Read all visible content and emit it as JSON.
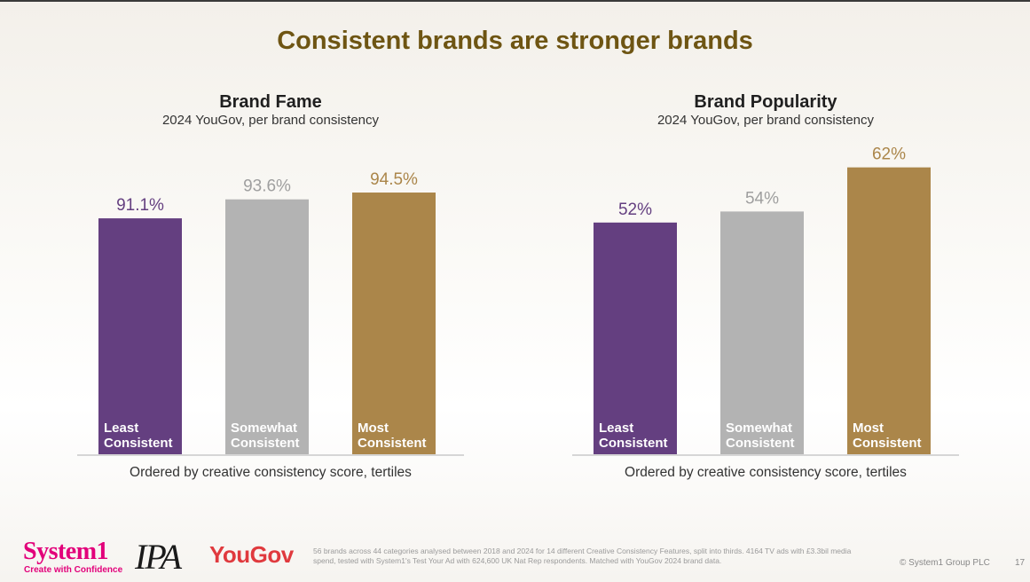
{
  "slide": {
    "title": "Consistent brands are stronger brands",
    "page_number": "17"
  },
  "colors": {
    "title": "#6e5513",
    "least": "#643f80",
    "somewhat": "#b3b3b3",
    "most": "#ab864a"
  },
  "chart_data": [
    {
      "type": "bar",
      "title": "Brand Fame",
      "subtitle": "2024 YouGov, per brand consistency",
      "caption": "Ordered by creative consistency score, tertiles",
      "categories": [
        "Least Consistent",
        "Somewhat Consistent",
        "Most Consistent"
      ],
      "category_lines": [
        [
          "Least",
          "Consistent"
        ],
        [
          "Somewhat",
          "Consistent"
        ],
        [
          "Most",
          "Consistent"
        ]
      ],
      "values": [
        91.1,
        93.6,
        94.5
      ],
      "data_labels": [
        "91.1%",
        "93.6%",
        "94.5%"
      ],
      "ylim": [
        60,
        100
      ],
      "grid": false,
      "legend": "none"
    },
    {
      "type": "bar",
      "title": "Brand Popularity",
      "subtitle": "2024 YouGov, per brand consistency",
      "caption": "Ordered by creative consistency score, tertiles",
      "categories": [
        "Least Consistent",
        "Somewhat Consistent",
        "Most Consistent"
      ],
      "category_lines": [
        [
          "Least",
          "Consistent"
        ],
        [
          "Somewhat",
          "Consistent"
        ],
        [
          "Most",
          "Consistent"
        ]
      ],
      "values": [
        52,
        54,
        62
      ],
      "data_labels": [
        "52%",
        "54%",
        "62%"
      ],
      "ylim": [
        10,
        65
      ],
      "grid": false,
      "legend": "none"
    }
  ],
  "footer": {
    "system1_logo": "System1",
    "system1_tagline": "Create with Confidence",
    "ipa_logo": "IPA",
    "yougov_logo": "YouGov",
    "footnote": "56 brands across 44 categories analysed between 2018 and 2024 for 14 different Creative Consistency Features, split into thirds. 4164 TV ads with £3.3bil media spend, tested with System1's Test Your Ad with 624,600 UK Nat Rep respondents. Matched with YouGov 2024 brand data.",
    "copyright": "© System1 Group PLC"
  }
}
